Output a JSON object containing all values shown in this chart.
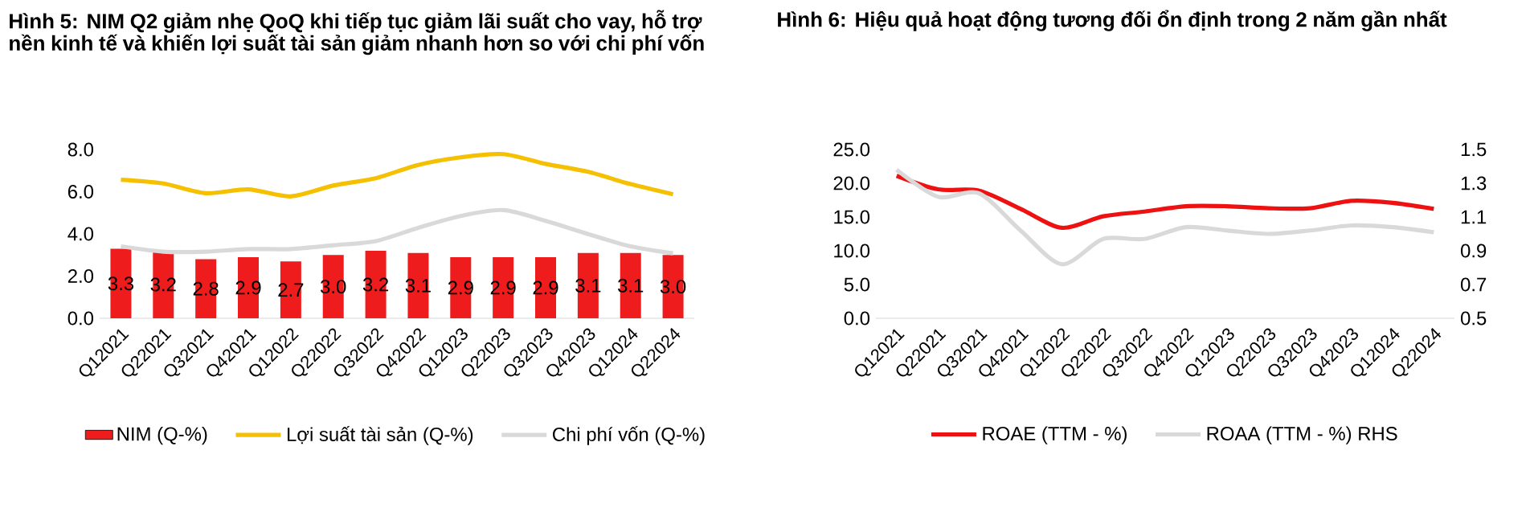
{
  "chart_data": [
    {
      "type": "bar",
      "title": "**Hình 5: NIM Q2 giảm nhẹ QoQ khi tiếp tục giảm lãi suất cho vay, hỗ trợ nền kinh tế và khiến lợi suất tài sản giảm nhanh hơn so với chi phí vốn**",
      "categories": [
        "Q12021",
        "Q22021",
        "Q32021",
        "Q42021",
        "Q12022",
        "Q22022",
        "Q32022",
        "Q42022",
        "Q12023",
        "Q22023",
        "Q32023",
        "Q42023",
        "Q12024",
        "Q22024"
      ],
      "ylim": [
        0,
        8
      ],
      "yticks": [
        {
          "value": 0,
          "label": "0.0"
        },
        {
          "value": 2,
          "label": "2.0"
        },
        {
          "value": 4,
          "label": "4.0"
        },
        {
          "value": 6,
          "label": "6.0"
        },
        {
          "value": 8,
          "label": "8.0"
        }
      ],
      "legend": "bottom",
      "series": [
        {
          "name": "NIM (Q-%)",
          "type": "bar",
          "color": "#ee1c1c",
          "values": [
            3.3,
            3.2,
            2.8,
            2.9,
            2.7,
            3.0,
            3.2,
            3.1,
            2.9,
            2.9,
            2.9,
            3.1,
            3.1,
            3.0
          ],
          "value_labels": [
            "3.3",
            "3.2",
            "2.8",
            "2.9",
            "2.7",
            "3.0",
            "3.2",
            "3.1",
            "2.9",
            "2.9",
            "2.9",
            "3.1",
            "3.1",
            "3.0"
          ]
        },
        {
          "name": "Lợi suất tài sản (Q-%)",
          "type": "line",
          "color": "#f5c000",
          "values": [
            6.57,
            6.39,
            5.93,
            6.11,
            5.78,
            6.29,
            6.64,
            7.27,
            7.63,
            7.78,
            7.32,
            6.94,
            6.36,
            5.88
          ]
        },
        {
          "name": "Chi phí vốn (Q-%)",
          "type": "line",
          "color": "#d9d9d9",
          "values": [
            3.41,
            3.16,
            3.16,
            3.28,
            3.28,
            3.46,
            3.66,
            4.29,
            4.85,
            5.13,
            4.62,
            3.99,
            3.41,
            3.08
          ]
        }
      ]
    },
    {
      "type": "line",
      "title": "**Hình 6: Hiệu quả hoạt động tương đối ổn định trong 2 năm gần nhất**",
      "categories": [
        "Q12021",
        "Q22021",
        "Q32021",
        "Q42021",
        "Q12022",
        "Q22022",
        "Q32022",
        "Q42022",
        "Q12023",
        "Q22023",
        "Q32023",
        "Q42023",
        "Q12024",
        "Q22024"
      ],
      "ylim": [
        0,
        25
      ],
      "yticks": [
        {
          "value": 0,
          "label": "0.0"
        },
        {
          "value": 5,
          "label": "5.0"
        },
        {
          "value": 10,
          "label": "10.0"
        },
        {
          "value": 15,
          "label": "15.0"
        },
        {
          "value": 20,
          "label": "20.0"
        },
        {
          "value": 25,
          "label": "25.0"
        }
      ],
      "y2lim": [
        0.5,
        1.5
      ],
      "y2ticks": [
        {
          "value": 0.5,
          "label": "0.5"
        },
        {
          "value": 0.7,
          "label": "0.7"
        },
        {
          "value": 0.9,
          "label": "0.9"
        },
        {
          "value": 1.1,
          "label": "1.1"
        },
        {
          "value": 1.3,
          "label": "1.3"
        },
        {
          "value": 1.5,
          "label": "1.5"
        }
      ],
      "legend": "bottom",
      "series": [
        {
          "name": "ROAE (TTM - %)",
          "color": "#ee1111",
          "values": [
            21.1,
            19.1,
            18.9,
            16.2,
            13.4,
            15.1,
            15.8,
            16.6,
            16.6,
            16.3,
            16.3,
            17.4,
            17.1,
            16.2
          ]
        },
        {
          "name": "ROAA (TTM - %) RHS",
          "color": "#d9d9d9",
          "axis": "y2",
          "values": [
            1.38,
            1.22,
            1.24,
            1.02,
            0.82,
            0.97,
            0.97,
            1.04,
            1.02,
            1.0,
            1.02,
            1.05,
            1.04,
            1.01
          ]
        }
      ]
    }
  ]
}
